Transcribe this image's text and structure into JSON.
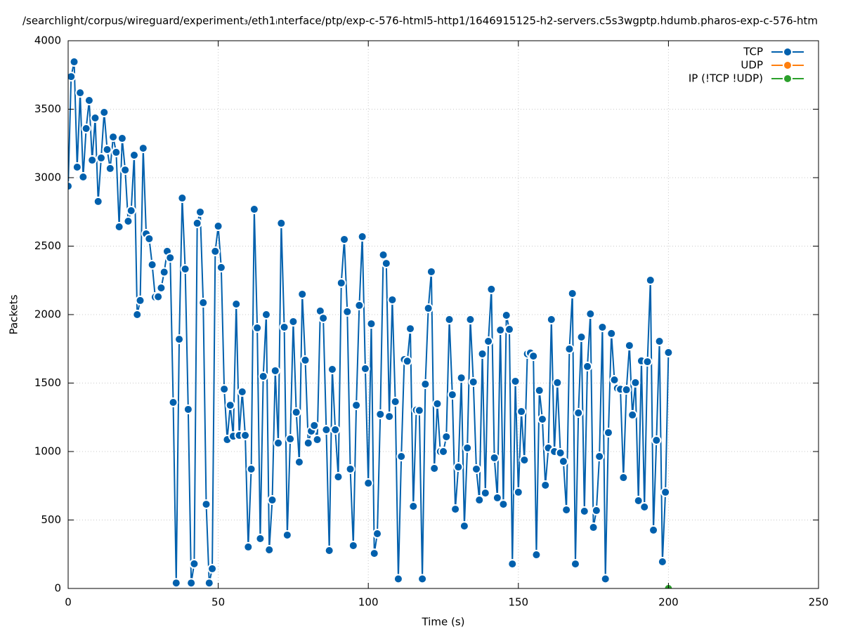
{
  "chart_data": {
    "type": "line",
    "title": "/searchlight/corpus/wireguard/experiment₃/eth1ᵢnterface/ptp/exp-c-576-html5-http1/1646915125-h2-servers.c5s3wgptp.hdumb.pharos-exp-c-576-htm",
    "x_label": "Time (s)",
    "y_label": "Packets",
    "xlim": [
      0,
      250
    ],
    "ylim": [
      0,
      4000
    ],
    "xticks": [
      0,
      50,
      100,
      150,
      200,
      250
    ],
    "yticks": [
      0,
      500,
      1000,
      1500,
      2000,
      2500,
      3000,
      3500,
      4000
    ],
    "grid": true,
    "legend": "top-right",
    "series": [
      {
        "name": "TCP",
        "color": "#0060ad",
        "x": [
          0,
          1,
          2,
          3,
          4,
          5,
          6,
          7,
          8,
          9,
          10,
          11,
          12,
          13,
          14,
          15,
          16,
          17,
          18,
          19,
          20,
          21,
          22,
          23,
          24,
          25,
          26,
          27,
          28,
          29,
          30,
          31,
          32,
          33,
          34,
          35,
          36,
          37,
          38,
          39,
          40,
          41,
          42,
          43,
          44,
          45,
          46,
          47,
          48,
          49,
          50,
          51,
          52,
          53,
          54,
          55,
          56,
          57,
          58,
          59,
          60,
          61,
          62,
          63,
          64,
          65,
          66,
          67,
          68,
          69,
          70,
          71,
          72,
          73,
          74,
          75,
          76,
          77,
          78,
          79,
          80,
          81,
          82,
          83,
          84,
          85,
          86,
          87,
          88,
          89,
          90,
          91,
          92,
          93,
          94,
          95,
          96,
          97,
          98,
          99,
          100,
          101,
          102,
          103,
          104,
          105,
          106,
          107,
          108,
          109,
          110,
          111,
          112,
          113,
          114,
          115,
          116,
          117,
          118,
          119,
          120,
          121,
          122,
          123,
          124,
          125,
          126,
          127,
          128,
          129,
          130,
          131,
          132,
          133,
          134,
          135,
          136,
          137,
          138,
          139,
          140,
          141,
          142,
          143,
          144,
          145,
          146,
          147,
          148,
          149,
          150,
          151,
          152,
          153,
          154,
          155,
          156,
          157,
          158,
          159,
          160,
          161,
          162,
          163,
          164,
          165,
          166,
          167,
          168,
          169,
          170,
          171,
          172,
          173,
          174,
          175,
          176,
          177,
          178,
          179,
          180,
          181,
          182,
          183,
          184,
          185,
          186,
          187,
          188,
          189,
          190,
          191,
          192,
          193,
          194,
          195,
          196,
          197,
          198,
          199,
          200
        ],
        "values": [
          2938,
          3738,
          3846,
          3077,
          3620,
          3005,
          3359,
          3564,
          3128,
          3436,
          2826,
          3144,
          3477,
          3205,
          3067,
          3297,
          3185,
          2641,
          3287,
          3056,
          2682,
          2759,
          3164,
          2000,
          2103,
          3215,
          2590,
          2554,
          2364,
          2128,
          2130,
          2195,
          2310,
          2462,
          2415,
          1359,
          40,
          1820,
          2851,
          2333,
          1308,
          40,
          180,
          2667,
          2749,
          2087,
          615,
          40,
          144,
          2462,
          2646,
          2344,
          1456,
          1087,
          1338,
          1112,
          2077,
          1118,
          1436,
          1118,
          303,
          872,
          2769,
          1903,
          364,
          1549,
          2000,
          282,
          646,
          1590,
          1062,
          2667,
          1908,
          390,
          1092,
          1949,
          1287,
          923,
          2149,
          1667,
          1062,
          1149,
          1190,
          1087,
          2026,
          1974,
          1159,
          277,
          1600,
          1159,
          815,
          2231,
          2549,
          2021,
          872,
          313,
          1338,
          2067,
          2569,
          1605,
          769,
          1933,
          256,
          400,
          1272,
          2436,
          2374,
          1256,
          2108,
          1364,
          70,
          964,
          1672,
          1660,
          1897,
          600,
          1303,
          1300,
          70,
          1492,
          2046,
          2313,
          877,
          1349,
          1000,
          1000,
          1108,
          1964,
          1415,
          579,
          887,
          1538,
          456,
          1026,
          1964,
          1508,
          872,
          646,
          1713,
          697,
          1805,
          2185,
          954,
          662,
          1887,
          615,
          1995,
          1892,
          179,
          1513,
          703,
          1292,
          938,
          1713,
          1720,
          1697,
          246,
          1446,
          1236,
          754,
          1026,
          1964,
          1000,
          1503,
          990,
          928,
          574,
          1749,
          2154,
          179,
          1282,
          1836,
          564,
          1621,
          2005,
          446,
          569,
          964,
          1908,
          70,
          1138,
          1862,
          1523,
          1462,
          1455,
          810,
          1451,
          1774,
          1267,
          1503,
          641,
          1662,
          595,
          1656,
          2251,
          426,
          1082,
          1805,
          195,
          703,
          1723
        ]
      },
      {
        "name": "UDP",
        "color": "#ff7f0e",
        "x": [
          200
        ],
        "values": [
          0
        ]
      },
      {
        "name": "IP (!TCP  !UDP)",
        "color": "#2ca02c",
        "x": [
          200
        ],
        "values": [
          0
        ]
      }
    ]
  }
}
